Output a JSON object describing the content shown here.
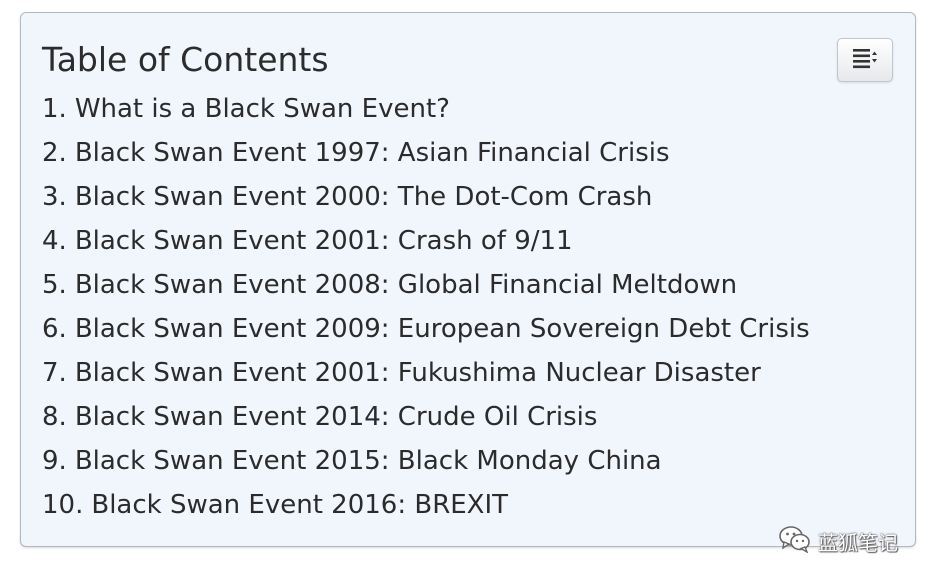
{
  "toc": {
    "title": "Table of Contents",
    "toggle_icon": "list-toggle-icon",
    "items": [
      {
        "num": "1.",
        "text": "What is a Black Swan Event?"
      },
      {
        "num": "2.",
        "text": "Black Swan Event 1997: Asian Financial Crisis"
      },
      {
        "num": "3.",
        "text": "Black Swan Event 2000: The Dot-Com Crash"
      },
      {
        "num": "4.",
        "text": "Black Swan Event 2001: Crash of 9/11"
      },
      {
        "num": "5.",
        "text": "Black Swan Event 2008: Global Financial Meltdown"
      },
      {
        "num": "6.",
        "text": "Black Swan Event 2009: European Sovereign Debt Crisis"
      },
      {
        "num": "7.",
        "text": "Black Swan Event 2001: Fukushima Nuclear Disaster"
      },
      {
        "num": "8.",
        "text": "Black Swan Event 2014: Crude Oil Crisis"
      },
      {
        "num": "9.",
        "text": "Black Swan Event 2015: Black Monday China"
      },
      {
        "num": "10.",
        "text": "Black Swan Event 2016: BREXIT"
      }
    ]
  },
  "watermark": {
    "text": "蓝狐笔记",
    "icon": "wechat-icon"
  },
  "colors": {
    "panel_bg": "#f1f6fd",
    "panel_border": "#b4b9bf",
    "text": "#2b2b2b"
  }
}
